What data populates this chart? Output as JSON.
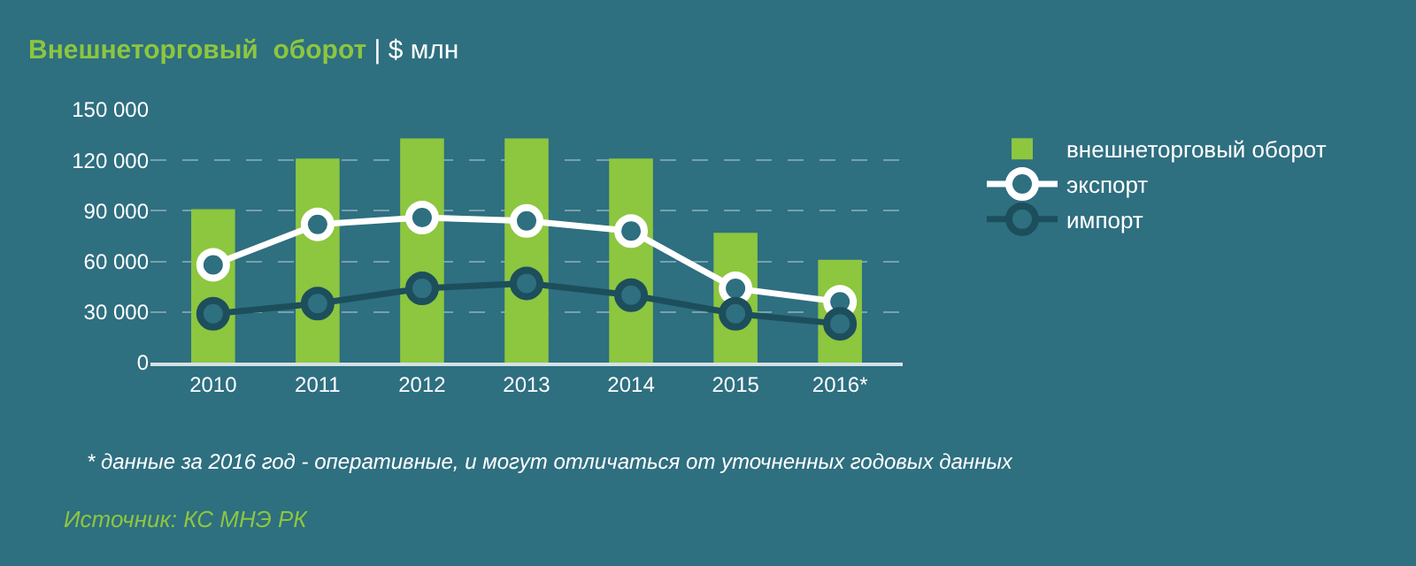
{
  "chart_data": {
    "type": "bar",
    "title": "Внешнеторговый  оборот",
    "subtitle": "| $ млн",
    "categories": [
      "2010",
      "2011",
      "2012",
      "2013",
      "2014",
      "2015",
      "2016*"
    ],
    "series": [
      {
        "name": "внешнеторговый оборот",
        "color": "#8dc63f",
        "values": [
          91000,
          121000,
          133000,
          133000,
          121000,
          77000,
          61000
        ]
      },
      {
        "name": "экспорт",
        "type": "line",
        "color": "#ffffff",
        "marker": "circle",
        "values": [
          58000,
          82000,
          86000,
          84000,
          78000,
          44000,
          36000
        ]
      },
      {
        "name": "импорт",
        "type": "line",
        "color": "#1d4e5c",
        "marker": "circle",
        "values": [
          29000,
          35000,
          44000,
          47000,
          40000,
          29000,
          23000
        ]
      }
    ],
    "ylim": [
      0,
      150000
    ],
    "yticks": [
      {
        "value": 0,
        "label": "0"
      },
      {
        "value": 30000,
        "label": "30 000"
      },
      {
        "value": 60000,
        "label": "60 000"
      },
      {
        "value": 90000,
        "label": "90 000"
      },
      {
        "value": 120000,
        "label": "120 000"
      },
      {
        "value": 150000,
        "label": "150 000"
      }
    ],
    "grid": "y",
    "legend": "right",
    "annotations": [
      "* данные за 2016 год - оперативные, и могут отличаться от уточненных годовых данных",
      "Источник: КС МНЭ РК"
    ]
  }
}
